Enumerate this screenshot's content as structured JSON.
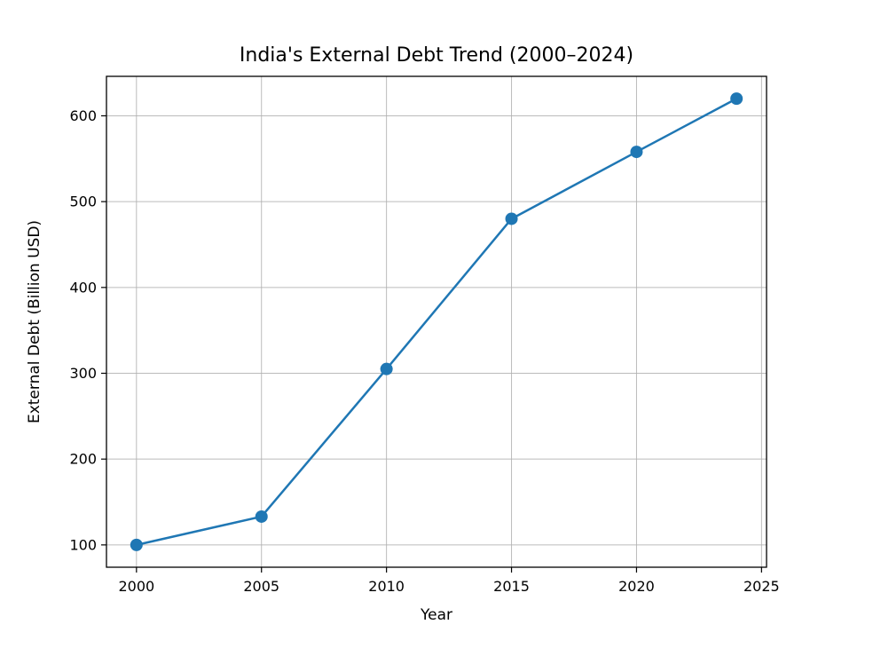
{
  "figure": {
    "background_color": "#ffffff"
  },
  "chart_data": {
    "type": "line",
    "title": "India's External Debt Trend (2000–2024)",
    "xlabel": "Year",
    "ylabel": "External Debt (Billion USD)",
    "x": [
      2000,
      2005,
      2010,
      2015,
      2020,
      2024
    ],
    "y": [
      100,
      133,
      305,
      480,
      558,
      620
    ],
    "series_name": "External Debt (Billion USD)",
    "xticks": [
      2000,
      2005,
      2010,
      2015,
      2020,
      2025
    ],
    "yticks": [
      100,
      200,
      300,
      400,
      500,
      600
    ],
    "xlim": [
      1998.8,
      2025.2
    ],
    "ylim": [
      74,
      646
    ],
    "grid": true,
    "legend_position": "none",
    "line_color": "#1f77b4",
    "marker": "o",
    "marker_size": 8,
    "line_width": 2.5,
    "grid_color": "#b0b0b0",
    "spine_color": "#000000",
    "tick_color": "#000000",
    "text_color": "#000000"
  }
}
